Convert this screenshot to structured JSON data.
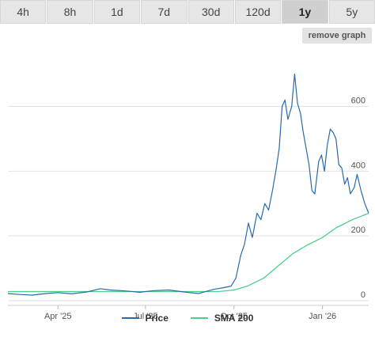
{
  "range_tabs": [
    {
      "label": "4h",
      "active": false
    },
    {
      "label": "8h",
      "active": false
    },
    {
      "label": "1d",
      "active": false
    },
    {
      "label": "7d",
      "active": false
    },
    {
      "label": "30d",
      "active": false
    },
    {
      "label": "120d",
      "active": false
    },
    {
      "label": "1y",
      "active": true
    },
    {
      "label": "5y",
      "active": false
    }
  ],
  "remove_graph_label": "remove graph",
  "chart_data": {
    "type": "line",
    "x_ticks": [
      "Apr '25",
      "Jul '25",
      "Oct '25",
      "Jan '26"
    ],
    "y_ticks": [
      0,
      200,
      400,
      600
    ],
    "ylim": [
      0,
      770
    ],
    "x_range": [
      "2025-02-08",
      "2026-02-18"
    ],
    "grid": true,
    "legend_position": "bottom",
    "series": [
      {
        "name": "Price",
        "color": "#2b6aa6",
        "points": [
          [
            "2025-02-08",
            22
          ],
          [
            "2025-02-20",
            19
          ],
          [
            "2025-03-05",
            17
          ],
          [
            "2025-03-20",
            22
          ],
          [
            "2025-04-01",
            25
          ],
          [
            "2025-04-15",
            21
          ],
          [
            "2025-05-01",
            27
          ],
          [
            "2025-05-15",
            37
          ],
          [
            "2025-05-25",
            33
          ],
          [
            "2025-06-10",
            30
          ],
          [
            "2025-06-25",
            26
          ],
          [
            "2025-07-10",
            31
          ],
          [
            "2025-07-25",
            33
          ],
          [
            "2025-08-10",
            27
          ],
          [
            "2025-08-25",
            22
          ],
          [
            "2025-09-10",
            35
          ],
          [
            "2025-09-20",
            40
          ],
          [
            "2025-09-28",
            45
          ],
          [
            "2025-10-03",
            70
          ],
          [
            "2025-10-08",
            140
          ],
          [
            "2025-10-12",
            175
          ],
          [
            "2025-10-16",
            240
          ],
          [
            "2025-10-20",
            195
          ],
          [
            "2025-10-25",
            270
          ],
          [
            "2025-10-29",
            250
          ],
          [
            "2025-11-02",
            300
          ],
          [
            "2025-11-06",
            280
          ],
          [
            "2025-11-10",
            340
          ],
          [
            "2025-11-14",
            410
          ],
          [
            "2025-11-17",
            470
          ],
          [
            "2025-11-20",
            600
          ],
          [
            "2025-11-23",
            620
          ],
          [
            "2025-11-26",
            560
          ],
          [
            "2025-11-30",
            600
          ],
          [
            "2025-12-03",
            700
          ],
          [
            "2025-12-06",
            610
          ],
          [
            "2025-12-09",
            580
          ],
          [
            "2025-12-12",
            520
          ],
          [
            "2025-12-15",
            470
          ],
          [
            "2025-12-18",
            420
          ],
          [
            "2025-12-21",
            340
          ],
          [
            "2025-12-24",
            330
          ],
          [
            "2025-12-28",
            430
          ],
          [
            "2025-12-31",
            450
          ],
          [
            "2026-01-03",
            400
          ],
          [
            "2026-01-06",
            480
          ],
          [
            "2026-01-09",
            530
          ],
          [
            "2026-01-12",
            520
          ],
          [
            "2026-01-15",
            500
          ],
          [
            "2026-01-18",
            420
          ],
          [
            "2026-01-21",
            410
          ],
          [
            "2026-01-24",
            360
          ],
          [
            "2026-01-27",
            380
          ],
          [
            "2026-01-30",
            330
          ],
          [
            "2026-02-03",
            350
          ],
          [
            "2026-02-06",
            390
          ],
          [
            "2026-02-10",
            340
          ],
          [
            "2026-02-14",
            300
          ],
          [
            "2026-02-18",
            270
          ]
        ]
      },
      {
        "name": "SMA 200",
        "color": "#4ccf8a",
        "points": [
          [
            "2025-02-08",
            28
          ],
          [
            "2025-04-01",
            28
          ],
          [
            "2025-06-01",
            28
          ],
          [
            "2025-08-01",
            28
          ],
          [
            "2025-09-15",
            28
          ],
          [
            "2025-10-01",
            33
          ],
          [
            "2025-10-15",
            45
          ],
          [
            "2025-11-01",
            70
          ],
          [
            "2025-11-15",
            105
          ],
          [
            "2025-12-01",
            145
          ],
          [
            "2025-12-15",
            170
          ],
          [
            "2026-01-01",
            195
          ],
          [
            "2026-01-15",
            225
          ],
          [
            "2026-02-01",
            250
          ],
          [
            "2026-02-18",
            270
          ]
        ]
      }
    ]
  }
}
